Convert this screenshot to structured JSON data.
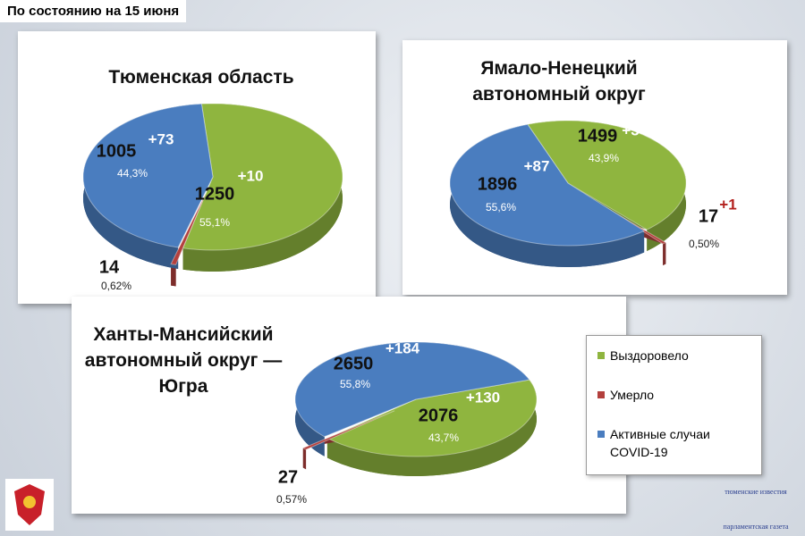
{
  "header": "По состоянию на 15 июня",
  "chart_data": [
    {
      "type": "pie",
      "title": "Тюменская область",
      "categories": [
        "Выздоровело",
        "Умерло",
        "Активные случаи COVID-19"
      ],
      "colors": [
        "#8fb53f",
        "#b3403d",
        "#4a7dbf"
      ],
      "values": [
        55.1,
        0.62,
        44.3
      ],
      "value_labels": [
        "55,1%",
        "0,62%",
        "44,3%"
      ],
      "counts": [
        1250,
        14,
        1005
      ],
      "increments": [
        "+10",
        null,
        "+73"
      ]
    },
    {
      "type": "pie",
      "title": "Ямало-Ненецкий автономный округ",
      "categories": [
        "Выздоровело",
        "Умерло",
        "Активные случаи COVID-19"
      ],
      "colors": [
        "#8fb53f",
        "#b3403d",
        "#4a7dbf"
      ],
      "values": [
        43.9,
        0.5,
        55.6
      ],
      "value_labels": [
        "43,9%",
        "0,50%",
        "55,6%"
      ],
      "counts": [
        1499,
        17,
        1896
      ],
      "increments": [
        "+3",
        "+1",
        "+87"
      ]
    },
    {
      "type": "pie",
      "title": "Ханты-Мансийский автономный округ — Югра",
      "categories": [
        "Выздоровело",
        "Умерло",
        "Активные случаи COVID-19"
      ],
      "colors": [
        "#8fb53f",
        "#b3403d",
        "#4a7dbf"
      ],
      "values": [
        43.7,
        0.57,
        55.8
      ],
      "value_labels": [
        "43,7%",
        "0,57%",
        "55,8%"
      ],
      "counts": [
        2076,
        27,
        2650
      ],
      "increments": [
        "+130",
        null,
        "+184"
      ]
    }
  ],
  "logo": {
    "top": "тюменские известия",
    "bottom": "парламентская газета"
  }
}
